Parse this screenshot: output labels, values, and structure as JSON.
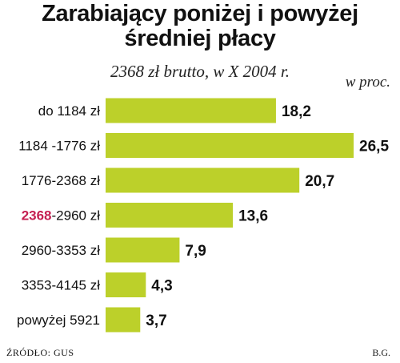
{
  "header": {
    "title_line1": "Zarabiający poniżej i powyżej",
    "title_line2": "średniej płacy",
    "subtitle": "2368 zł brutto, w X 2004 r.",
    "unit": "w proc."
  },
  "footer": {
    "source": "ŹRÓDŁO: GUS",
    "author": "B.G."
  },
  "colors": {
    "bar": "#bcd02a",
    "highlight": "#c41e50",
    "text": "#111111"
  },
  "chart_data": {
    "type": "bar",
    "orientation": "horizontal",
    "title": "Zarabiający poniżej i powyżej średniej płacy",
    "subtitle": "2368 zł brutto, w X 2004 r.",
    "unit": "w proc.",
    "categories": [
      "do 1184 zł",
      "1184 -1776 zł",
      "1776-2368 zł",
      "2368-2960 zł",
      "2960-3353 zł",
      "3353-4145 zł",
      "powyżej 5921"
    ],
    "values": [
      18.2,
      26.5,
      20.7,
      13.6,
      7.9,
      4.3,
      3.7
    ],
    "value_labels": [
      "18,2",
      "26,5",
      "20,7",
      "13,6",
      "7,9",
      "4,3",
      "3,7"
    ],
    "highlight": {
      "category_index": 3,
      "text": "2368"
    },
    "grid": false,
    "legend": "none"
  }
}
